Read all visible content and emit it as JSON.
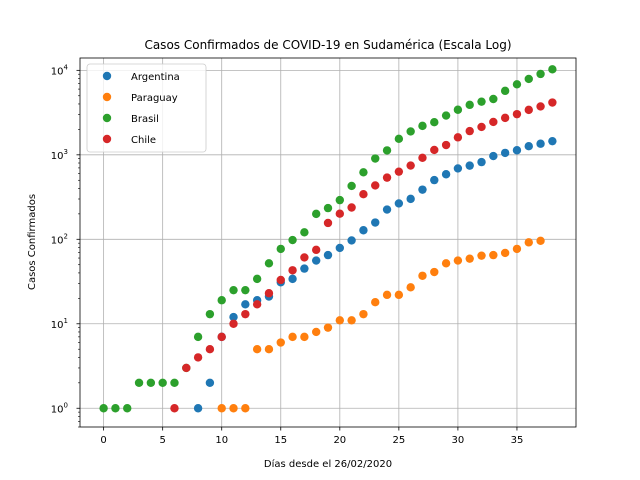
{
  "chart_data": {
    "type": "scatter",
    "title": "Casos Confirmados de COVID-19 en Sudamérica (Escala Log)",
    "xlabel": "Días desde el 26/02/2020",
    "ylabel": "Casos Confirmados",
    "xlim": [
      -2,
      40
    ],
    "ylim": [
      0.6,
      14000
    ],
    "yscale": "log",
    "grid": true,
    "legend_position": "top-left",
    "x_ticks": [
      0,
      5,
      10,
      15,
      20,
      25,
      30,
      35
    ],
    "y_ticks": [
      1,
      10,
      100,
      1000,
      10000
    ],
    "y_tick_labels": [
      "10",
      "10",
      "10",
      "10",
      "10"
    ],
    "y_tick_exponents": [
      "0",
      "1",
      "2",
      "3",
      "4"
    ],
    "series": [
      {
        "name": "Argentina",
        "color": "#1f77b4",
        "x": [
          8,
          9,
          10,
          11,
          12,
          13,
          14,
          15,
          16,
          17,
          18,
          19,
          20,
          21,
          22,
          23,
          24,
          25,
          26,
          27,
          28,
          29,
          30,
          31,
          32,
          33,
          34,
          35,
          36,
          37,
          38
        ],
        "y": [
          1,
          2,
          7,
          12,
          17,
          19,
          21,
          31,
          34,
          45,
          56,
          65,
          79,
          97,
          128,
          158,
          225,
          266,
          301,
          387,
          502,
          589,
          690,
          745,
          820,
          966,
          1054,
          1133,
          1265,
          1353,
          1451
        ]
      },
      {
        "name": "Paraguay",
        "color": "#ff7f0e",
        "x": [
          10,
          11,
          12,
          13,
          14,
          15,
          16,
          17,
          18,
          19,
          20,
          21,
          22,
          23,
          24,
          25,
          26,
          27,
          28,
          29,
          30,
          31,
          32,
          33,
          34,
          35,
          36,
          37
        ],
        "y": [
          1,
          1,
          1,
          5,
          5,
          6,
          7,
          7,
          8,
          9,
          11,
          11,
          13,
          18,
          22,
          22,
          27,
          37,
          41,
          52,
          56,
          59,
          64,
          65,
          69,
          77,
          92,
          96
        ]
      },
      {
        "name": "Brasil",
        "color": "#2ca02c",
        "x": [
          0,
          1,
          2,
          3,
          4,
          5,
          6,
          7,
          8,
          9,
          10,
          11,
          12,
          13,
          14,
          15,
          16,
          17,
          18,
          19,
          20,
          21,
          22,
          23,
          24,
          25,
          26,
          27,
          28,
          29,
          30,
          31,
          32,
          33,
          34,
          35,
          36,
          37,
          38
        ],
        "y": [
          1,
          1,
          1,
          2,
          2,
          2,
          2,
          3,
          7,
          13,
          19,
          25,
          25,
          34,
          52,
          77,
          98,
          121,
          200,
          234,
          291,
          428,
          621,
          904,
          1128,
          1546,
          1891,
          2201,
          2433,
          2915,
          3417,
          3904,
          4256,
          4579,
          5717,
          6836,
          7910,
          9056,
          10278
        ]
      },
      {
        "name": "Chile",
        "color": "#d62728",
        "x": [
          6,
          7,
          8,
          9,
          10,
          11,
          12,
          13,
          14,
          15,
          16,
          17,
          18,
          19,
          20,
          21,
          22,
          23,
          24,
          25,
          26,
          27,
          28,
          29,
          30,
          31,
          32,
          33,
          34,
          35,
          36,
          37,
          38
        ],
        "y": [
          1,
          3,
          4,
          5,
          7,
          10,
          13,
          17,
          23,
          33,
          43,
          61,
          75,
          156,
          201,
          238,
          342,
          434,
          537,
          632,
          746,
          922,
          1142,
          1306,
          1610,
          1909,
          2139,
          2449,
          2738,
          3031,
          3404,
          3737,
          4161
        ]
      }
    ]
  }
}
